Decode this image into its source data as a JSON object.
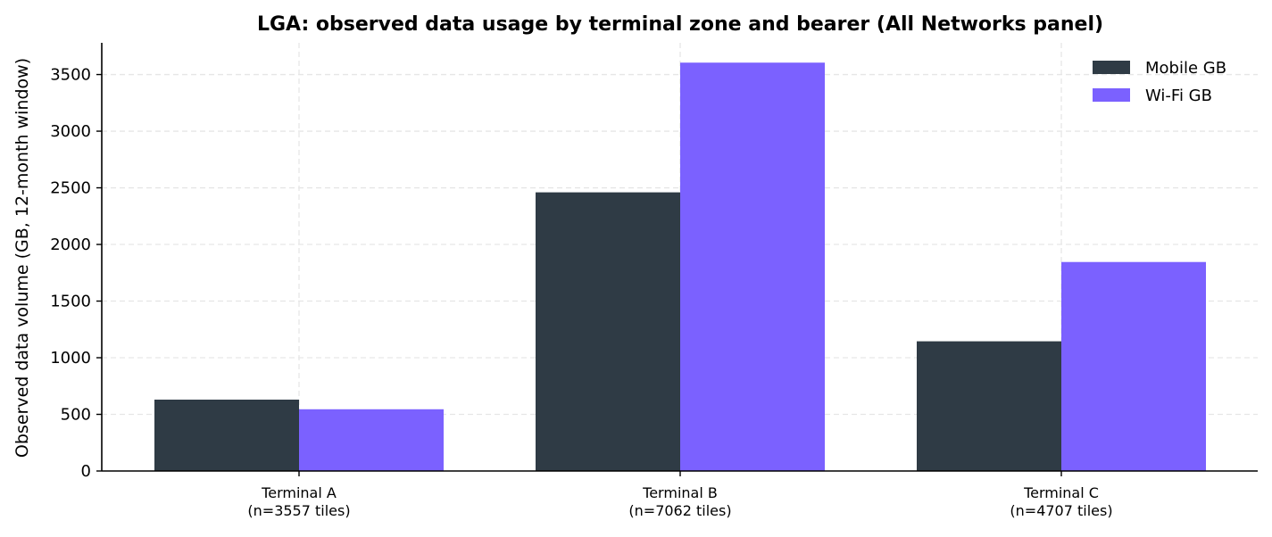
{
  "chart_data": {
    "type": "bar",
    "title": "LGA: observed data usage by terminal zone and bearer (All Networks panel)",
    "xlabel": "",
    "ylabel": "Observed data volume (GB, 12-month window)",
    "categories": [
      [
        "Terminal A",
        "(n=3557 tiles)"
      ],
      [
        "Terminal B",
        "(n=7062 tiles)"
      ],
      [
        "Terminal C",
        "(n=4707 tiles)"
      ]
    ],
    "series": [
      {
        "name": "Mobile GB",
        "color": "#2f3b45",
        "values": [
          630,
          2460,
          1145
        ]
      },
      {
        "name": "Wi-Fi GB",
        "color": "#7b61ff",
        "values": [
          545,
          3605,
          1845
        ]
      }
    ],
    "ylim": [
      0,
      3780
    ],
    "yticks": [
      0,
      500,
      1000,
      1500,
      2000,
      2500,
      3000,
      3500
    ],
    "grid": true,
    "legend_position": "top-right"
  }
}
